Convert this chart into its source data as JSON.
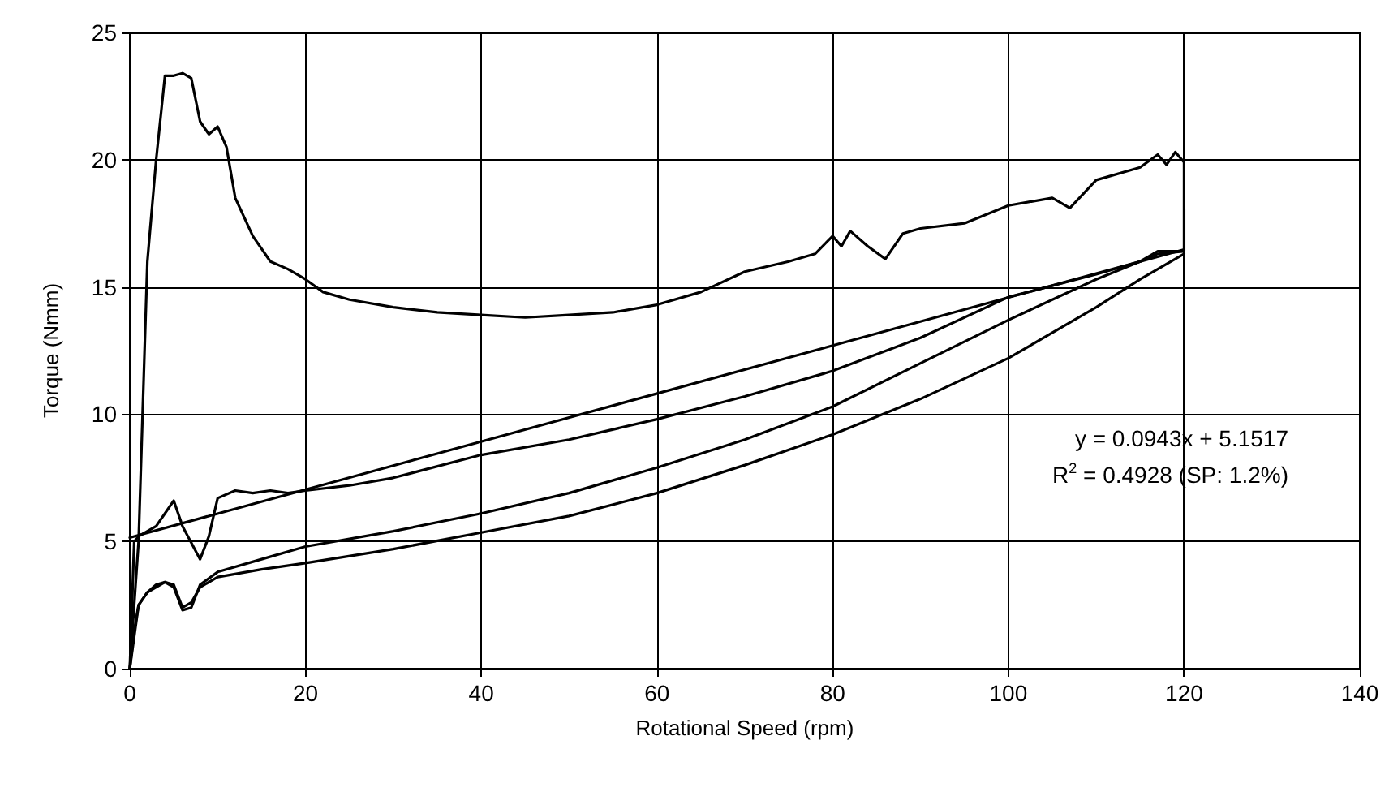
{
  "chart_data": {
    "type": "line",
    "xlabel": "Rotational Speed (rpm)",
    "ylabel": "Torque (Nmm)",
    "xlim": [
      0,
      140
    ],
    "xticks": [
      0,
      20,
      40,
      60,
      80,
      100,
      120,
      140
    ],
    "ylim": [
      0,
      25
    ],
    "yticks": [
      0,
      5,
      10,
      15,
      20,
      25
    ],
    "grid": true,
    "marker": "none",
    "line_style": "solid",
    "annotations": [
      "y = 0.0943x + 5.1517",
      "R$^{2}$ = 0.4928 (SP: 1.2%)"
    ],
    "series": [
      {
        "color": "#000000",
        "x": [
          0,
          1,
          2,
          3,
          4,
          5,
          6,
          7,
          8,
          9,
          10,
          11,
          12,
          14,
          16,
          18,
          20,
          22,
          25,
          30,
          35,
          40,
          45,
          50,
          55,
          60,
          65,
          70,
          75,
          78,
          80,
          81,
          82,
          84,
          86,
          88,
          90,
          95,
          100,
          105,
          107,
          110,
          115,
          117,
          118,
          119,
          120,
          120
        ],
        "values": [
          0,
          5,
          16,
          20,
          23.3,
          23.3,
          23.4,
          23.2,
          21.5,
          21,
          21.3,
          20.5,
          18.5,
          17,
          16,
          15.7,
          15.3,
          14.8,
          14.5,
          14.2,
          14,
          13.9,
          13.8,
          13.9,
          14,
          14.3,
          14.8,
          15.6,
          16,
          16.3,
          17,
          16.6,
          17.2,
          16.6,
          16.1,
          17.1,
          17.3,
          17.5,
          18.2,
          18.5,
          18.1,
          19.2,
          19.7,
          20.2,
          19.8,
          20.3,
          19.9,
          16.4
        ]
      },
      {
        "color": "#000000",
        "x": [
          0,
          0.5,
          1,
          3,
          5,
          6,
          8,
          9,
          10,
          12,
          14,
          16,
          18,
          20,
          25,
          30,
          40,
          50,
          60,
          70,
          80,
          90,
          100,
          110,
          115,
          117,
          120
        ],
        "values": [
          0,
          5,
          5.2,
          5.6,
          6.6,
          5.6,
          4.3,
          5.2,
          6.7,
          7,
          6.9,
          7,
          6.9,
          7,
          7.2,
          7.5,
          8.4,
          9,
          9.8,
          10.7,
          11.7,
          13,
          14.6,
          15.5,
          16,
          16.4,
          16.4
        ]
      },
      {
        "color": "#000000",
        "x": [
          0,
          1,
          2,
          4,
          5,
          6,
          7,
          8,
          10,
          15,
          20,
          30,
          40,
          50,
          60,
          70,
          80,
          90,
          100,
          110,
          115,
          117,
          120
        ],
        "values": [
          0,
          2.5,
          3,
          3.4,
          3.2,
          2.3,
          2.4,
          3.3,
          3.8,
          4.3,
          4.8,
          5.4,
          6.1,
          6.9,
          7.9,
          9,
          10.3,
          12,
          13.7,
          15.3,
          16,
          16.3,
          16.4
        ]
      },
      {
        "color": "#000000",
        "x": [
          0,
          0.5,
          1,
          2,
          3,
          4,
          5,
          6,
          7,
          8,
          10,
          15,
          20,
          30,
          40,
          50,
          60,
          70,
          80,
          90,
          100,
          110,
          115,
          118,
          120
        ],
        "values": [
          0,
          1.5,
          2.5,
          3,
          3.3,
          3.4,
          3.3,
          2.4,
          2.6,
          3.2,
          3.6,
          3.9,
          4.15,
          4.7,
          5.35,
          6,
          6.9,
          8,
          9.2,
          10.6,
          12.2,
          14.2,
          15.3,
          15.9,
          16.3
        ]
      },
      {
        "type": "line",
        "color": "#000000",
        "x": [
          0,
          120
        ],
        "values": [
          5.15,
          16.47
        ]
      }
    ]
  }
}
